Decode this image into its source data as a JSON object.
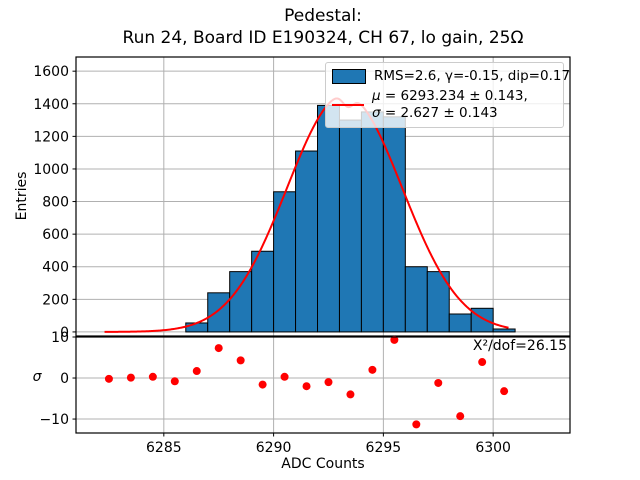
{
  "title": {
    "line1": "Pedestal:",
    "line2": "Run 24, Board ID E190324, CH 67, lo gain, 25Ω"
  },
  "legend": {
    "entry1": "RMS=2.6, γ=-0.15, dip=0.17",
    "mu_symbol": "μ",
    "entry2_line1_rest": " = 6293.234 ± 0.143,",
    "sigma_symbol": "σ",
    "entry2_line2_rest": " = 2.627 ± 0.143"
  },
  "main_plot": {
    "ylabel": "Entries"
  },
  "residual_plot": {
    "ylabel": "σ",
    "annotation": "X²/dof=26.15"
  },
  "xaxis": {
    "label": "ADC Counts"
  },
  "colors": {
    "bar_fill": "#1f77b4",
    "bar_edge": "#000000",
    "fit_line": "#ff0000",
    "residual_dot": "#ff0000",
    "grid": "#b0b0b0",
    "spine": "#000000",
    "text": "#000000",
    "legend_bg": "rgba(255,255,255,0.8)",
    "legend_border": "#cccccc"
  },
  "chart_data": [
    {
      "type": "bar",
      "name": "pedestal-histogram",
      "title": "Pedestal: Run 24, Board ID E190324, CH 67, lo gain, 25Ω",
      "xlabel": "ADC Counts",
      "ylabel": "Entries",
      "bin_left_edges": [
        6286,
        6287,
        6288,
        6289,
        6290,
        6291,
        6292,
        6293,
        6294,
        6295,
        6296,
        6297,
        6298,
        6299,
        6300
      ],
      "bin_width": 1,
      "values": [
        55,
        240,
        370,
        495,
        860,
        1110,
        1390,
        1300,
        1350,
        1320,
        400,
        370,
        110,
        145,
        18
      ],
      "xlim": [
        6281,
        6303.5
      ],
      "ylim": [
        -25,
        1687
      ],
      "yticks": [
        0,
        200,
        400,
        600,
        800,
        1000,
        1200,
        1400,
        1600
      ],
      "ytick_labels": [
        "0",
        "200",
        "400",
        "600",
        "800",
        "1000",
        "1200",
        "1400",
        "1600"
      ],
      "xticks": [
        6285,
        6290,
        6295,
        6300
      ],
      "xtick_labels": [
        "6285",
        "6290",
        "6295",
        "6300"
      ],
      "grid": true,
      "legend_position": "upper right"
    },
    {
      "type": "line",
      "name": "gaussian-fit",
      "mu": 6293.234,
      "mu_err": 0.143,
      "sigma": 2.627,
      "sigma_err": 0.143,
      "amplitude": 1455,
      "rms": 2.6,
      "gamma": -0.15,
      "dip": 0.17,
      "x_range": [
        6282.3,
        6300.7
      ]
    },
    {
      "type": "scatter",
      "name": "fit-residuals",
      "ylabel": "σ",
      "ylim": [
        -13.4,
        10
      ],
      "yticks": [
        10,
        0,
        -10
      ],
      "ytick_labels": [
        "10",
        "0",
        "−10"
      ],
      "x": [
        6282.5,
        6283.5,
        6284.5,
        6285.5,
        6286.5,
        6287.5,
        6288.5,
        6289.5,
        6290.5,
        6291.5,
        6292.5,
        6293.5,
        6294.5,
        6295.5,
        6296.5,
        6297.5,
        6298.5,
        6299.5,
        6300.5
      ],
      "y": [
        -0.2,
        0.1,
        0.3,
        -0.8,
        1.7,
        7.3,
        4.3,
        -1.6,
        0.3,
        -2.0,
        -1.0,
        -4.0,
        2.0,
        9.3,
        -11.3,
        -1.2,
        -9.3,
        3.9,
        -3.2
      ],
      "annotation": "X²/dof=26.15"
    }
  ]
}
